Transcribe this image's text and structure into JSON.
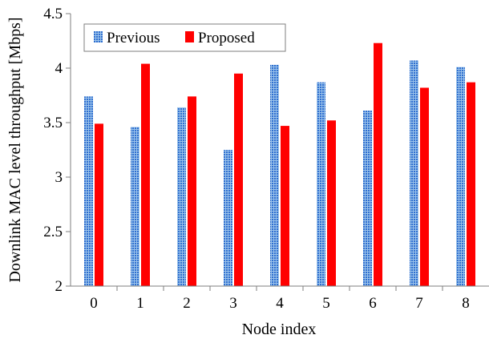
{
  "chart_data": {
    "type": "bar",
    "xlabel": "Node index",
    "ylabel": "Downlink MAC level throughput [Mbps]",
    "categories": [
      "0",
      "1",
      "2",
      "3",
      "4",
      "5",
      "6",
      "7",
      "8"
    ],
    "ylim": [
      2,
      4.5
    ],
    "yticks": [
      "2",
      "2.5",
      "3",
      "3.5",
      "4",
      "4.5"
    ],
    "grid": false,
    "legend_position": "top-left",
    "series": [
      {
        "name": "Previous",
        "color": "#5b9bd5",
        "pattern": "dotted",
        "values": [
          3.74,
          3.46,
          3.64,
          3.25,
          4.03,
          3.87,
          3.61,
          4.07,
          4.01
        ]
      },
      {
        "name": "Proposed",
        "color": "#ff0000",
        "pattern": "solid",
        "values": [
          3.49,
          4.04,
          3.74,
          3.95,
          3.47,
          3.52,
          4.23,
          3.82,
          3.87
        ]
      }
    ]
  }
}
